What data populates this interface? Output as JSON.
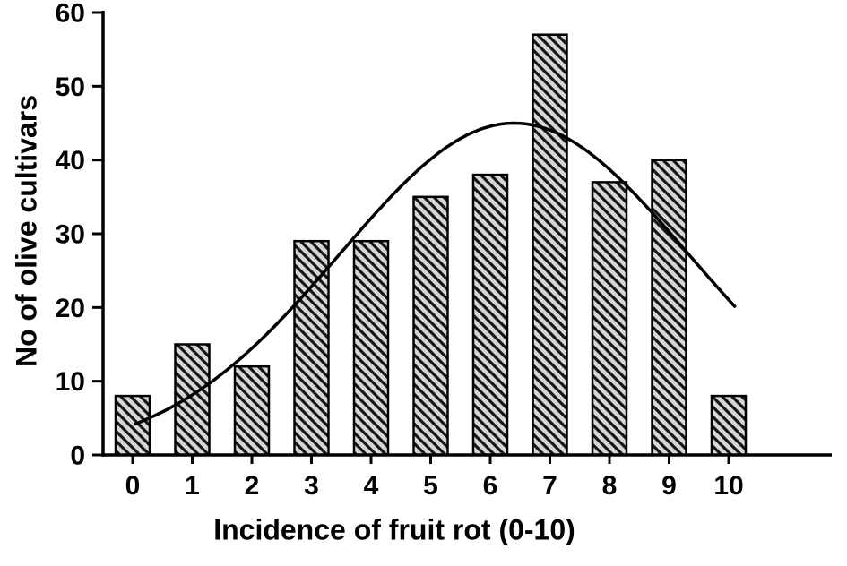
{
  "chart_data": {
    "type": "bar",
    "title": "",
    "xlabel": "Incidence of fruit rot (0-10)",
    "ylabel": "No of olive cultivars",
    "categories": [
      "0",
      "1",
      "2",
      "3",
      "4",
      "5",
      "6",
      "7",
      "8",
      "9",
      "10"
    ],
    "values": [
      8,
      15,
      12,
      29,
      29,
      35,
      38,
      57,
      37,
      40,
      8
    ],
    "ylim": [
      0,
      60
    ],
    "yticks": [
      0,
      10,
      20,
      30,
      40,
      50,
      60
    ],
    "grid": false,
    "legend": "none",
    "bar_style": {
      "fill": "#d6d6d6",
      "hatch": "diagonal-backslash",
      "hatch_color": "#161616",
      "border": "#000000"
    },
    "axis_color": "#000000",
    "background": "#ffffff",
    "curve": {
      "description": "bell-shaped fitted curve over bars",
      "type": "gaussian",
      "amplitude": 45,
      "mean": 6.4,
      "sigma": 2.92,
      "x_start": 0.05,
      "x_end": 10.1,
      "color": "#000000"
    }
  }
}
